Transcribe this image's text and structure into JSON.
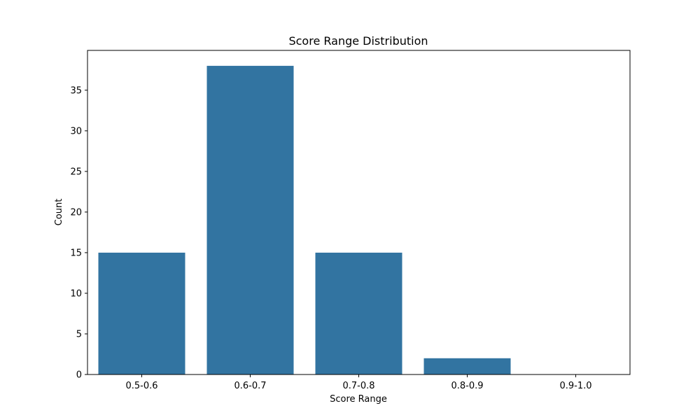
{
  "chart_data": {
    "type": "bar",
    "title": "Score Range Distribution",
    "xlabel": "Score Range",
    "ylabel": "Count",
    "categories": [
      "0.5-0.6",
      "0.6-0.7",
      "0.7-0.8",
      "0.8-0.9",
      "0.9-1.0"
    ],
    "values": [
      15,
      38,
      15,
      2,
      0
    ],
    "ylim": [
      0,
      39.9
    ],
    "yticks": [
      0,
      5,
      10,
      15,
      20,
      25,
      30,
      35
    ],
    "grid": false,
    "legend": "none",
    "colors": {
      "bar": "#3274a1",
      "axis": "#000000",
      "background": "#ffffff"
    }
  }
}
